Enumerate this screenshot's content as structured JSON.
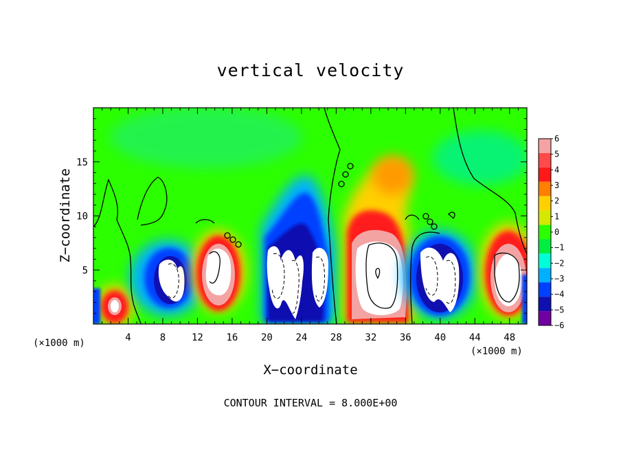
{
  "chart_data": {
    "type": "heatmap",
    "title": "vertical velocity",
    "xlabel": "X−coordinate",
    "ylabel": "Z−coordinate",
    "x_unit_label": "(×1000 m)",
    "x_unit_label_right": "(×1000 m)",
    "footer": "CONTOUR INTERVAL = 8.000E+00",
    "xlim": [
      0,
      50
    ],
    "ylim": [
      0,
      20
    ],
    "x_ticks": [
      "4",
      "8",
      "12",
      "16",
      "20",
      "24",
      "28",
      "32",
      "36",
      "40",
      "44",
      "48"
    ],
    "y_ticks": [
      "5",
      "10",
      "15"
    ],
    "colorbar": {
      "range": [
        -6,
        6
      ],
      "tick_labels": [
        "6",
        "5",
        "4",
        "3",
        "2",
        "1",
        "0",
        "−1",
        "−2",
        "−3",
        "−4",
        "−5",
        "−6"
      ],
      "colors": [
        "#f4a3a3",
        "#ff4a4a",
        "#ff1a1a",
        "#ff7f00",
        "#ffd000",
        "#d4e800",
        "#2cff00",
        "#00ee40",
        "#00ffd8",
        "#00b0ff",
        "#0040ff",
        "#1010b0",
        "#7000a0"
      ]
    },
    "features": [
      {
        "x": 2.5,
        "z": 1.8,
        "value": 6,
        "sign": "up"
      },
      {
        "x": 9.0,
        "z": 5.0,
        "value": -6,
        "sign": "down"
      },
      {
        "x": 14.0,
        "z": 5.2,
        "value": 6,
        "sign": "up"
      },
      {
        "x": 21.5,
        "z": 5.0,
        "value": -6,
        "sign": "down"
      },
      {
        "x": 26.0,
        "z": 4.5,
        "value": -6,
        "sign": "down"
      },
      {
        "x": 33.0,
        "z": 5.0,
        "value": 6,
        "sign": "up"
      },
      {
        "x": 34.0,
        "z": 13.0,
        "value": 3,
        "sign": "up"
      },
      {
        "x": 40.0,
        "z": 4.8,
        "value": -6,
        "sign": "down"
      },
      {
        "x": 47.5,
        "z": 4.5,
        "value": 6,
        "sign": "up"
      }
    ]
  }
}
